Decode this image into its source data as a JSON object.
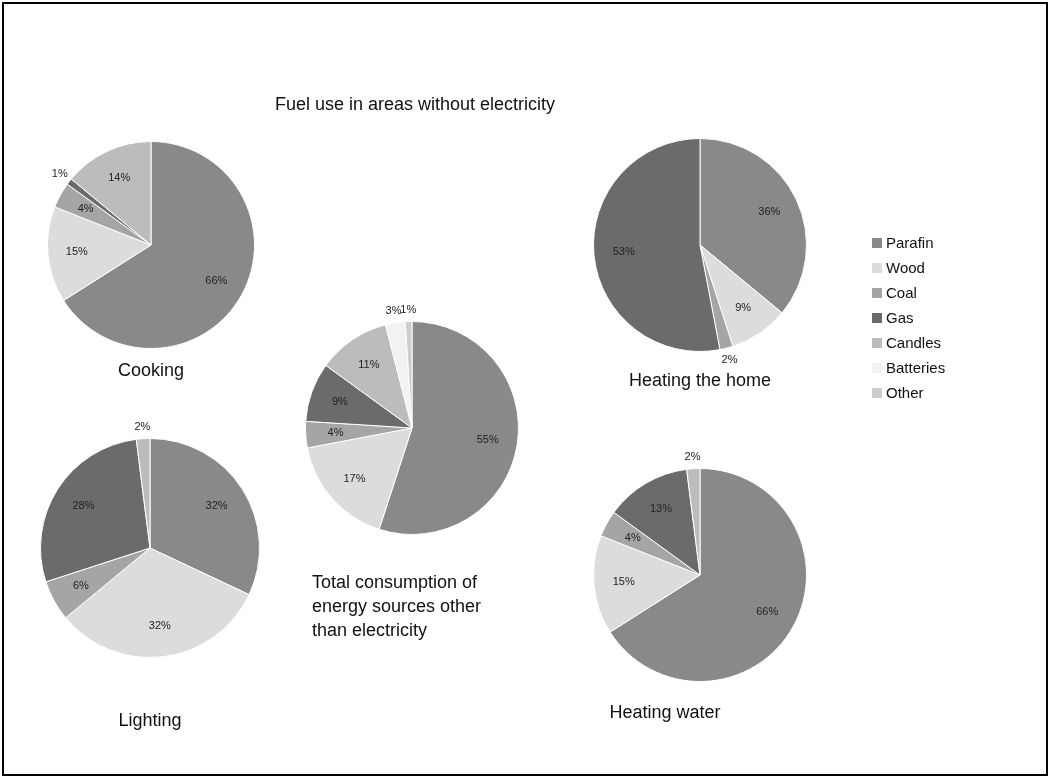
{
  "chart_data": [
    {
      "type": "other",
      "title": "Fuel use in areas without electricity"
    },
    {
      "type": "pie",
      "title": "Cooking",
      "categories": [
        null,
        null,
        null,
        null,
        null
      ],
      "values": [
        66,
        15,
        4,
        1,
        14
      ],
      "value_labels": [
        "66%",
        "15%",
        "4%",
        "1%",
        "14%"
      ],
      "colors": [
        "#898989",
        "#dcdcdc",
        "#a5a5a5",
        "#6b6b6b",
        "#bcbcbc"
      ]
    },
    {
      "type": "pie",
      "title": "Heating the home",
      "categories": [
        null,
        null,
        null,
        null
      ],
      "values": [
        36,
        9,
        2,
        53
      ],
      "value_labels": [
        "36%",
        "9%",
        "2%",
        "53%"
      ],
      "colors": [
        "#898989",
        "#dcdcdc",
        "#a5a5a5",
        "#6b6b6b"
      ]
    },
    {
      "type": "pie",
      "title": "Total consumption of energy sources other than electricity",
      "categories": [
        "Parafin",
        "Wood",
        "Coal",
        "Gas",
        "Candles",
        "Batteries",
        "Other"
      ],
      "values": [
        55,
        17,
        4,
        9,
        11,
        3,
        1
      ],
      "value_labels": [
        "55%",
        "17%",
        "4%",
        "9%",
        "11%",
        "3%",
        "1%"
      ],
      "colors": [
        "#898989",
        "#dcdcdc",
        "#a5a5a5",
        "#6b6b6b",
        "#bcbcbc",
        "#f2f2f2",
        "#cccccc"
      ],
      "legend": "right"
    },
    {
      "type": "pie",
      "title": "Lighting",
      "categories": [
        null,
        null,
        null,
        null,
        null
      ],
      "values": [
        32,
        32,
        6,
        28,
        2
      ],
      "value_labels": [
        "32%",
        "32%",
        "6%",
        "28%",
        "2%"
      ],
      "colors": [
        "#898989",
        "#dcdcdc",
        "#a5a5a5",
        "#6b6b6b",
        "#bcbcbc"
      ]
    },
    {
      "type": "pie",
      "title": "Heating water",
      "categories": [
        null,
        null,
        null,
        null,
        null
      ],
      "values": [
        66,
        15,
        4,
        13,
        2
      ],
      "value_labels": [
        "66%",
        "15%",
        "4%",
        "13%",
        "2%"
      ],
      "colors": [
        "#898989",
        "#dcdcdc",
        "#a5a5a5",
        "#6b6b6b",
        "#bcbcbc"
      ]
    }
  ]
}
